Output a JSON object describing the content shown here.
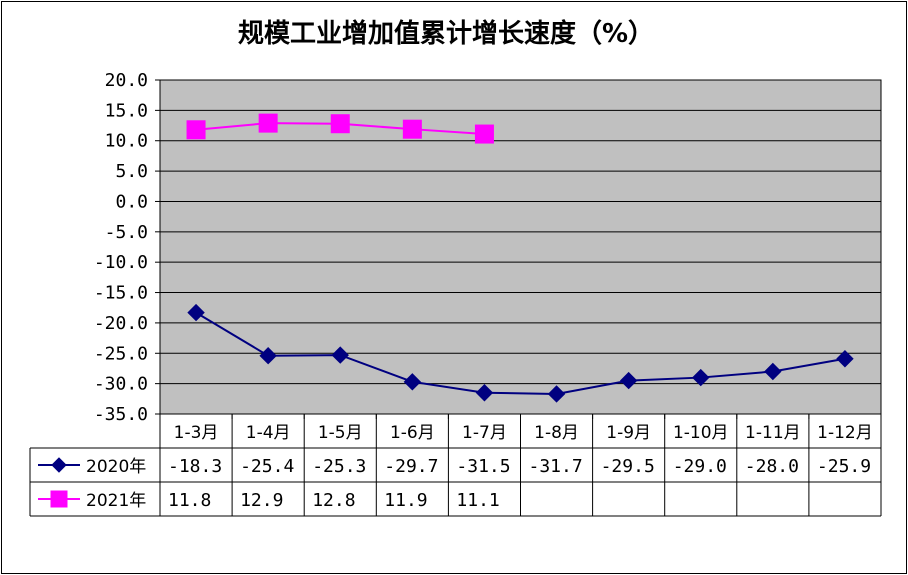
{
  "chart_data": {
    "type": "line",
    "title": "规模工业增加值累计增长速度（%）",
    "categories": [
      "1-3月",
      "1-4月",
      "1-5月",
      "1-6月",
      "1-7月",
      "1-8月",
      "1-9月",
      "1-10月",
      "1-11月",
      "1-12月"
    ],
    "y_ticks": [
      "20.0",
      "15.0",
      "10.0",
      "5.0",
      "0.0",
      "-5.0",
      "-10.0",
      "-15.0",
      "-20.0",
      "-25.0",
      "-30.0",
      "-35.0"
    ],
    "ylim": [
      -35,
      20
    ],
    "grid": true,
    "legend": "data-table",
    "series": [
      {
        "name": "2020年",
        "color": "#000080",
        "marker": "diamond",
        "values": [
          -18.3,
          -25.4,
          -25.3,
          -29.7,
          -31.5,
          -31.7,
          -29.5,
          -29.0,
          -28.0,
          -25.9
        ],
        "labels": [
          "-18.3",
          "-25.4",
          "-25.3",
          "-29.7",
          "-31.5",
          "-31.7",
          "-29.5",
          "-29.0",
          "-28.0",
          "-25.9"
        ]
      },
      {
        "name": "2021年",
        "color": "#ff00ff",
        "marker": "square",
        "values": [
          11.8,
          12.9,
          12.8,
          11.9,
          11.1,
          null,
          null,
          null,
          null,
          null
        ],
        "labels": [
          "11.8",
          "12.9",
          "12.8",
          "11.9",
          "11.1",
          "",
          "",
          "",
          "",
          ""
        ]
      }
    ],
    "plot_background": "#c0c0c0"
  }
}
